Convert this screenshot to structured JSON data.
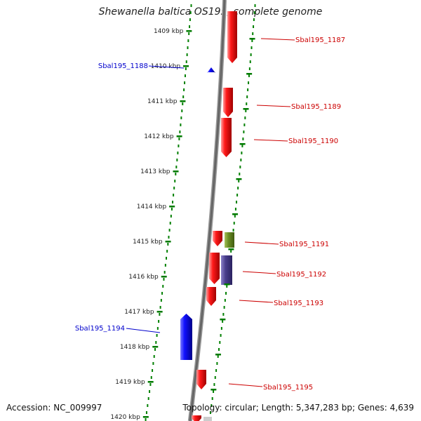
{
  "title": "Shewanella baltica OS195, complete genome",
  "accession": "Accession: NC_009997",
  "summary": "Topology: circular; Length: 5,347,283 bp; Genes: 4,639",
  "colors": {
    "forward_gene": "#ff0000",
    "reverse_gene": "#0000ff",
    "label_forward": "#cc0000",
    "label_reverse": "#0000cc",
    "dotted_track": "#008000",
    "backbone": "#777777",
    "green_feature": "#6b8e23",
    "purple_feature": "#483d8b"
  },
  "ticks": [
    {
      "label": "1409 kbp"
    },
    {
      "label": "1410 kbp"
    },
    {
      "label": "1411 kbp"
    },
    {
      "label": "1412 kbp"
    },
    {
      "label": "1413 kbp"
    },
    {
      "label": "1414 kbp"
    },
    {
      "label": "1415 kbp"
    },
    {
      "label": "1416 kbp"
    },
    {
      "label": "1417 kbp"
    },
    {
      "label": "1418 kbp"
    },
    {
      "label": "1419 kbp"
    },
    {
      "label": "1420 kbp"
    }
  ],
  "genes": [
    {
      "name": "Sbal195_1187",
      "strand": "forward"
    },
    {
      "name": "Sbal195_1188",
      "strand": "reverse"
    },
    {
      "name": "Sbal195_1189",
      "strand": "forward"
    },
    {
      "name": "Sbal195_1190",
      "strand": "forward"
    },
    {
      "name": "Sbal195_1191",
      "strand": "forward"
    },
    {
      "name": "Sbal195_1192",
      "strand": "forward"
    },
    {
      "name": "Sbal195_1193",
      "strand": "forward"
    },
    {
      "name": "Sbal195_1194",
      "strand": "reverse"
    },
    {
      "name": "Sbal195_1195",
      "strand": "forward"
    }
  ]
}
